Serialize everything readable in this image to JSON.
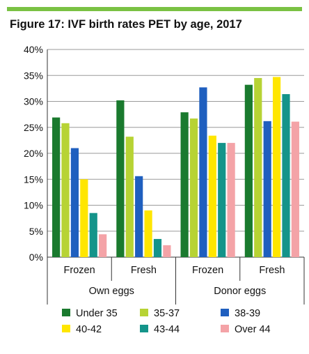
{
  "figure": {
    "title": "Figure 17: IVF birth rates PET by age, 2017"
  },
  "chart_data": {
    "type": "bar",
    "title": "Figure 17: IVF birth rates PET by age, 2017",
    "xlabel": "",
    "ylabel": "",
    "ylim": [
      0,
      40
    ],
    "y_ticks": [
      "0%",
      "5%",
      "10%",
      "15%",
      "20%",
      "25%",
      "30%",
      "35%",
      "40%"
    ],
    "y_tick_values": [
      0,
      5,
      10,
      15,
      20,
      25,
      30,
      35,
      40
    ],
    "grid": true,
    "legend_position": "bottom",
    "groups": [
      {
        "label": "Own eggs",
        "categories": [
          "Frozen",
          "Fresh"
        ]
      },
      {
        "label": "Donor eggs",
        "categories": [
          "Frozen",
          "Fresh"
        ]
      }
    ],
    "categories": [
      "Frozen",
      "Fresh",
      "Frozen",
      "Fresh"
    ],
    "series": [
      {
        "name": "Under 35",
        "color": "#1a7a2e",
        "values": [
          26.9,
          30.2,
          27.9,
          33.2
        ]
      },
      {
        "name": "35-37",
        "color": "#b7d334",
        "values": [
          25.8,
          23.2,
          26.7,
          34.5
        ]
      },
      {
        "name": "38-39",
        "color": "#1f5fbf",
        "values": [
          21.0,
          15.6,
          32.7,
          26.2
        ]
      },
      {
        "name": "40-42",
        "color": "#ffe600",
        "values": [
          15.0,
          9.0,
          23.4,
          34.7
        ]
      },
      {
        "name": "43-44",
        "color": "#14948a",
        "values": [
          8.5,
          3.5,
          22.0,
          31.4
        ]
      },
      {
        "name": "Over 44",
        "color": "#f4a3a7",
        "values": [
          4.4,
          2.3,
          22.0,
          26.1
        ]
      }
    ]
  }
}
